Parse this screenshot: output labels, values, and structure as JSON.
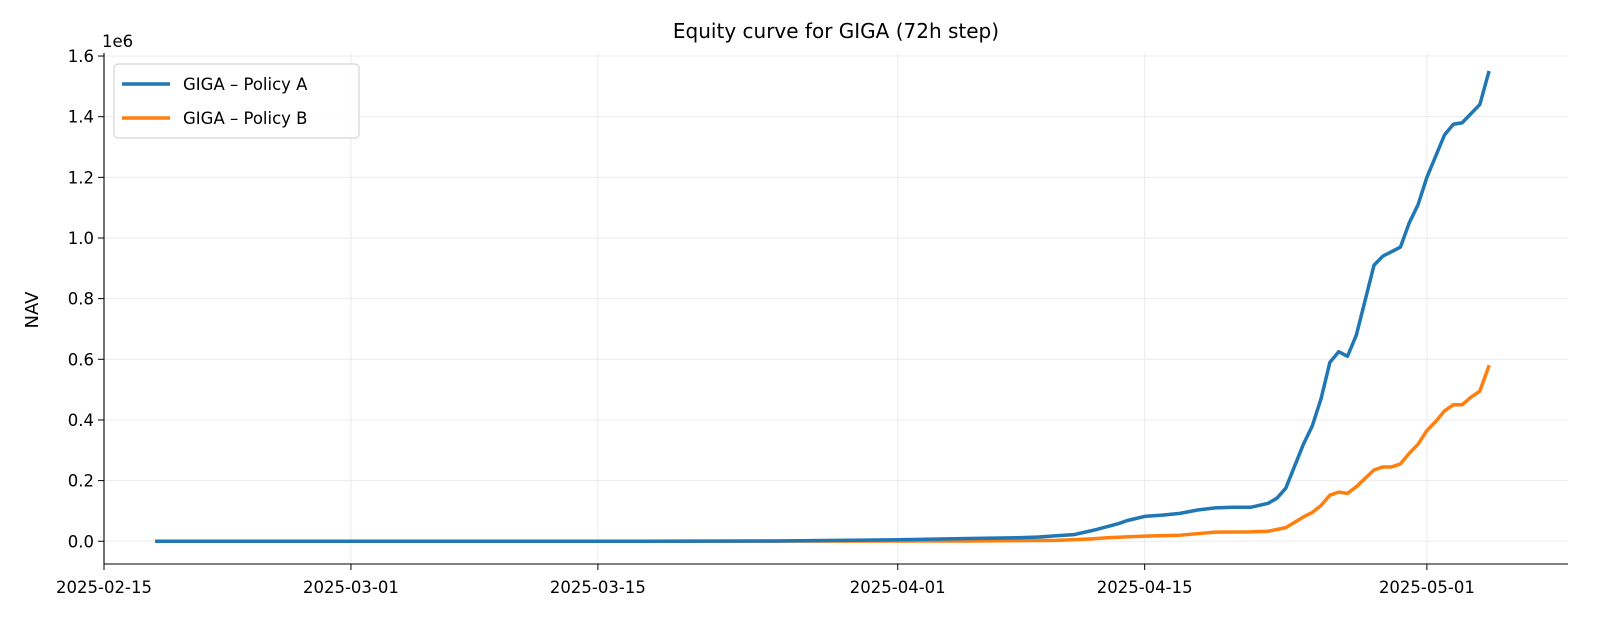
{
  "chart_data": {
    "type": "line",
    "title": "Equity curve for GIGA (72h step)",
    "xlabel": "",
    "ylabel": "NAV",
    "y_offset_label": "1e6",
    "y_scale": 1000000,
    "ylim": [
      -75000,
      1610000
    ],
    "xlim": [
      "2025-02-15",
      "2025-05-09"
    ],
    "grid": true,
    "legend_position": "top-left",
    "x_ticks": [
      "2025-02-15",
      "2025-03-01",
      "2025-03-15",
      "2025-04-01",
      "2025-04-15",
      "2025-05-01"
    ],
    "y_ticks": [
      0,
      200000,
      400000,
      600000,
      800000,
      1000000,
      1200000,
      1400000,
      1600000
    ],
    "y_tick_labels": [
      "0.0",
      "0.2",
      "0.4",
      "0.6",
      "0.8",
      "1.0",
      "1.2",
      "1.4",
      "1.6"
    ],
    "series": [
      {
        "name": "GIGA – Policy A",
        "color": "#1f77b4",
        "points": [
          [
            "2025-02-18",
            0
          ],
          [
            "2025-03-01",
            0
          ],
          [
            "2025-03-15",
            0
          ],
          [
            "2025-03-25",
            1000
          ],
          [
            "2025-04-01",
            5000
          ],
          [
            "2025-04-05",
            9000
          ],
          [
            "2025-04-08",
            12000
          ],
          [
            "2025-04-09",
            14000
          ],
          [
            "2025-04-10",
            18000
          ],
          [
            "2025-04-11",
            22000
          ],
          [
            "2025-04-12",
            35000
          ],
          [
            "2025-04-13",
            50000
          ],
          [
            "2025-04-13T12:00",
            58000
          ],
          [
            "2025-04-14",
            68000
          ],
          [
            "2025-04-15",
            82000
          ],
          [
            "2025-04-16",
            86000
          ],
          [
            "2025-04-17",
            92000
          ],
          [
            "2025-04-18",
            103000
          ],
          [
            "2025-04-19",
            110000
          ],
          [
            "2025-04-20",
            112000
          ],
          [
            "2025-04-21",
            112000
          ],
          [
            "2025-04-22",
            125000
          ],
          [
            "2025-04-22T12:00",
            142000
          ],
          [
            "2025-04-23",
            175000
          ],
          [
            "2025-04-24",
            320000
          ],
          [
            "2025-04-24T12:00",
            380000
          ],
          [
            "2025-04-25",
            470000
          ],
          [
            "2025-04-25T12:00",
            590000
          ],
          [
            "2025-04-26",
            625000
          ],
          [
            "2025-04-26T12:00",
            610000
          ],
          [
            "2025-04-27",
            680000
          ],
          [
            "2025-04-28",
            910000
          ],
          [
            "2025-04-28T12:00",
            940000
          ],
          [
            "2025-04-29T12:00",
            970000
          ],
          [
            "2025-04-30",
            1050000
          ],
          [
            "2025-04-30T12:00",
            1110000
          ],
          [
            "2025-05-01",
            1200000
          ],
          [
            "2025-05-01T12:00",
            1270000
          ],
          [
            "2025-05-02",
            1340000
          ],
          [
            "2025-05-02T12:00",
            1375000
          ],
          [
            "2025-05-03",
            1380000
          ],
          [
            "2025-05-03T12:00",
            1410000
          ],
          [
            "2025-05-04",
            1440000
          ],
          [
            "2025-05-04T12:00",
            1545000
          ]
        ]
      },
      {
        "name": "GIGA – Policy B",
        "color": "#ff7f0e",
        "points": [
          [
            "2025-02-18",
            0
          ],
          [
            "2025-03-15",
            0
          ],
          [
            "2025-04-05",
            1000
          ],
          [
            "2025-04-10",
            3000
          ],
          [
            "2025-04-12",
            8000
          ],
          [
            "2025-04-13",
            12000
          ],
          [
            "2025-04-15",
            17000
          ],
          [
            "2025-04-17",
            20000
          ],
          [
            "2025-04-19",
            30000
          ],
          [
            "2025-04-21",
            31000
          ],
          [
            "2025-04-22",
            33000
          ],
          [
            "2025-04-23",
            45000
          ],
          [
            "2025-04-24",
            80000
          ],
          [
            "2025-04-24T12:00",
            95000
          ],
          [
            "2025-04-25",
            118000
          ],
          [
            "2025-04-25T12:00",
            152000
          ],
          [
            "2025-04-26",
            162000
          ],
          [
            "2025-04-26T12:00",
            158000
          ],
          [
            "2025-04-27",
            180000
          ],
          [
            "2025-04-28",
            235000
          ],
          [
            "2025-04-28T12:00",
            245000
          ],
          [
            "2025-04-29",
            245000
          ],
          [
            "2025-04-29T12:00",
            255000
          ],
          [
            "2025-04-30",
            290000
          ],
          [
            "2025-04-30T12:00",
            320000
          ],
          [
            "2025-05-01",
            365000
          ],
          [
            "2025-05-01T12:00",
            395000
          ],
          [
            "2025-05-02",
            430000
          ],
          [
            "2025-05-02T12:00",
            450000
          ],
          [
            "2025-05-03",
            450000
          ],
          [
            "2025-05-03T12:00",
            475000
          ],
          [
            "2025-05-04",
            495000
          ],
          [
            "2025-05-04T12:00",
            575000
          ]
        ]
      }
    ]
  }
}
